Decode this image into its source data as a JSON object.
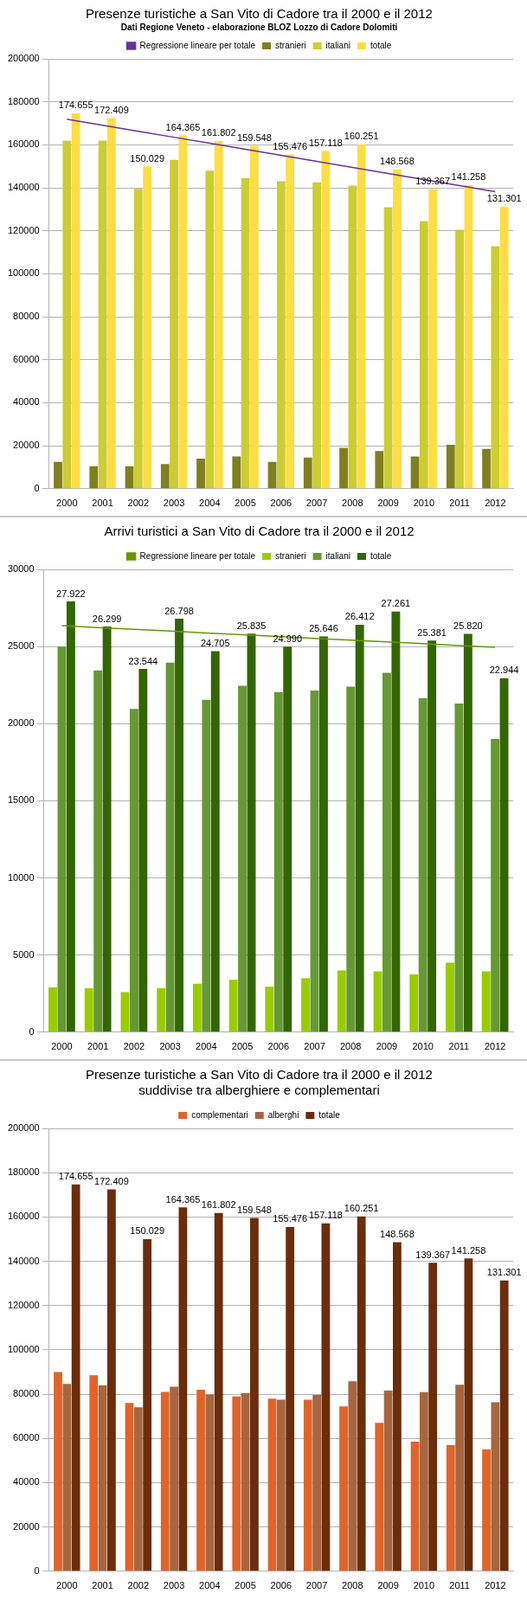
{
  "chart_data": [
    {
      "type": "bar",
      "title": "Presenze turistiche a San Vito di Cadore tra il 2000 e il 2012",
      "subtitle": "Dati Regione Veneto - elaborazione BLOZ Lozzo di Cadore Dolomiti",
      "categories": [
        "2000",
        "2001",
        "2002",
        "2003",
        "2004",
        "2005",
        "2006",
        "2007",
        "2008",
        "2009",
        "2010",
        "2011",
        "2012"
      ],
      "series": [
        {
          "name": "stranieri",
          "color": "#7f7f1f",
          "values": [
            12500,
            10500,
            10500,
            11500,
            14000,
            15000,
            12500,
            14500,
            19000,
            17500,
            15000,
            20500,
            18500
          ]
        },
        {
          "name": "italiani",
          "color": "#cccc33",
          "values": [
            162000,
            162000,
            139500,
            153000,
            148000,
            144500,
            143000,
            142500,
            141000,
            131000,
            124500,
            120500,
            112800
          ]
        },
        {
          "name": "totale",
          "color": "#ffdd44",
          "values": [
            174655,
            172409,
            150029,
            164365,
            161802,
            159548,
            155476,
            157118,
            160251,
            148568,
            139367,
            141258,
            131301
          ],
          "data_labels": true,
          "value_labels": [
            "174.655",
            "172.409",
            "150.029",
            "164.365",
            "161.802",
            "159.548",
            "155.476",
            "157.118",
            "160.251",
            "148.568",
            "139.367",
            "141.258",
            "131.301"
          ]
        },
        {
          "name": "Regressione lineare per totale",
          "type": "line",
          "color": "#663399",
          "values": [
            171948,
            169138,
            166328,
            163518,
            160708,
            157898,
            155088,
            152278,
            149468,
            146658,
            143848,
            141038,
            138228
          ]
        }
      ],
      "ylim": [
        0,
        200000
      ],
      "yticks": [
        0,
        20000,
        40000,
        60000,
        80000,
        100000,
        120000,
        140000,
        160000,
        180000,
        200000
      ],
      "grid": true,
      "legend": "top"
    },
    {
      "type": "bar",
      "title": "Arrivi turistici a San Vito di Cadore tra il 2000 e il 2012",
      "categories": [
        "2000",
        "2001",
        "2002",
        "2003",
        "2004",
        "2005",
        "2006",
        "2007",
        "2008",
        "2009",
        "2010",
        "2011",
        "2012"
      ],
      "series": [
        {
          "name": "stranieri",
          "color": "#99cc00",
          "values": [
            2900,
            2850,
            2600,
            2850,
            3150,
            3400,
            2950,
            3500,
            4000,
            3950,
            3750,
            4500,
            3950
          ]
        },
        {
          "name": "italiani",
          "color": "#669933",
          "values": [
            25000,
            23450,
            20950,
            23950,
            21550,
            22450,
            22050,
            22150,
            22400,
            23300,
            21650,
            21300,
            19000
          ]
        },
        {
          "name": "totale",
          "color": "#336600",
          "values": [
            27922,
            26299,
            23544,
            26798,
            24705,
            25835,
            24990,
            25646,
            26412,
            27261,
            25381,
            25820,
            22944
          ],
          "data_labels": true,
          "value_labels": [
            "27.922",
            "26.299",
            "23.544",
            "26.798",
            "24.705",
            "25.835",
            "24.990",
            "25.646",
            "26.412",
            "27.261",
            "25.381",
            "25.820",
            "22.944"
          ]
        },
        {
          "name": "Regressione lineare per totale",
          "type": "line",
          "color": "#669900",
          "values": [
            26350,
            26233,
            26117,
            26000,
            25883,
            25767,
            25650,
            25533,
            25417,
            25300,
            25183,
            25067,
            24950
          ]
        }
      ],
      "ylim": [
        0,
        30000
      ],
      "yticks": [
        0,
        5000,
        10000,
        15000,
        20000,
        25000,
        30000
      ],
      "grid": true,
      "legend": "top"
    },
    {
      "type": "bar",
      "title": "Presenze turistiche a San Vito di Cadore tra il 2000 e il 2012 suddivise tra alberghiere e complementari",
      "categories": [
        "2000",
        "2001",
        "2002",
        "2003",
        "2004",
        "2005",
        "2006",
        "2007",
        "2008",
        "2009",
        "2010",
        "2011",
        "2012"
      ],
      "series": [
        {
          "name": "complementari",
          "color": "#e0642a",
          "values": [
            90000,
            88500,
            76000,
            81000,
            82000,
            79000,
            78000,
            77500,
            74500,
            67000,
            58500,
            57000,
            55000
          ]
        },
        {
          "name": "alberghi",
          "color": "#a8663f",
          "values": [
            84655,
            83909,
            74029,
            83365,
            79802,
            80548,
            77476,
            79618,
            85751,
            81568,
            80867,
            84258,
            76301
          ]
        },
        {
          "name": "totale",
          "color": "#6b2d0c",
          "values": [
            174655,
            172409,
            150029,
            164365,
            161802,
            159548,
            155476,
            157118,
            160251,
            148568,
            139367,
            141258,
            131301
          ],
          "data_labels": true,
          "value_labels": [
            "174.655",
            "172.409",
            "150.029",
            "164.365",
            "161.802",
            "159.548",
            "155.476",
            "157.118",
            "160.251",
            "148.568",
            "139.367",
            "141.258",
            "131.301"
          ]
        }
      ],
      "ylim": [
        0,
        200000
      ],
      "yticks": [
        0,
        20000,
        40000,
        60000,
        80000,
        100000,
        120000,
        140000,
        160000,
        180000,
        200000
      ],
      "grid": true,
      "legend": "top"
    }
  ]
}
